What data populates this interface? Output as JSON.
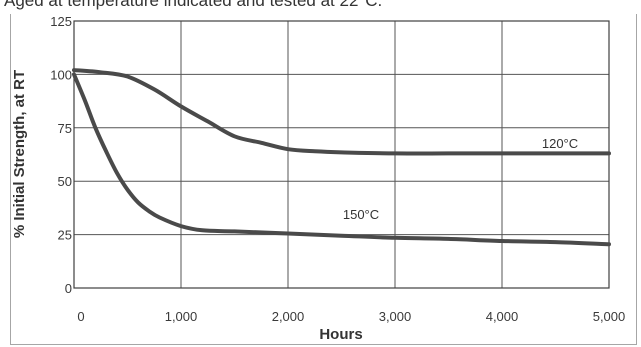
{
  "caption": "Aged at temperature indicated and tested at 22°C.",
  "chart_data": {
    "type": "line",
    "title": "",
    "xlabel": "Hours",
    "ylabel": "% Initial Strength, at RT",
    "xlim": [
      0,
      5000
    ],
    "ylim": [
      0,
      125
    ],
    "xticks": [
      0,
      1000,
      2000,
      3000,
      4000,
      5000
    ],
    "xtick_labels": [
      "0",
      "1,000",
      "2,000",
      "3,000",
      "4,000",
      "5,000"
    ],
    "yticks": [
      0,
      25,
      50,
      75,
      100,
      125
    ],
    "ytick_labels": [
      "0",
      "25",
      "50",
      "75",
      "100",
      "125"
    ],
    "grid": true,
    "line_color": "#4a4a4a",
    "series": [
      {
        "name": "120°C",
        "x": [
          0,
          250,
          500,
          750,
          1000,
          1250,
          1500,
          1750,
          2000,
          2250,
          2500,
          3000,
          3500,
          4000,
          4500,
          5000
        ],
        "y": [
          102,
          101,
          99,
          93,
          85,
          78,
          71,
          68,
          65,
          64,
          63.5,
          63,
          63,
          63,
          63,
          63
        ]
      },
      {
        "name": "150°C",
        "x": [
          0,
          100,
          200,
          300,
          400,
          500,
          600,
          700,
          800,
          1000,
          1200,
          1500,
          2000,
          2500,
          3000,
          3500,
          4000,
          4500,
          5000
        ],
        "y": [
          100,
          88,
          75,
          64,
          54,
          46,
          40,
          36,
          33,
          29,
          27,
          26.5,
          25.5,
          24.5,
          23.5,
          23,
          22,
          21.5,
          20.5
        ]
      }
    ]
  }
}
